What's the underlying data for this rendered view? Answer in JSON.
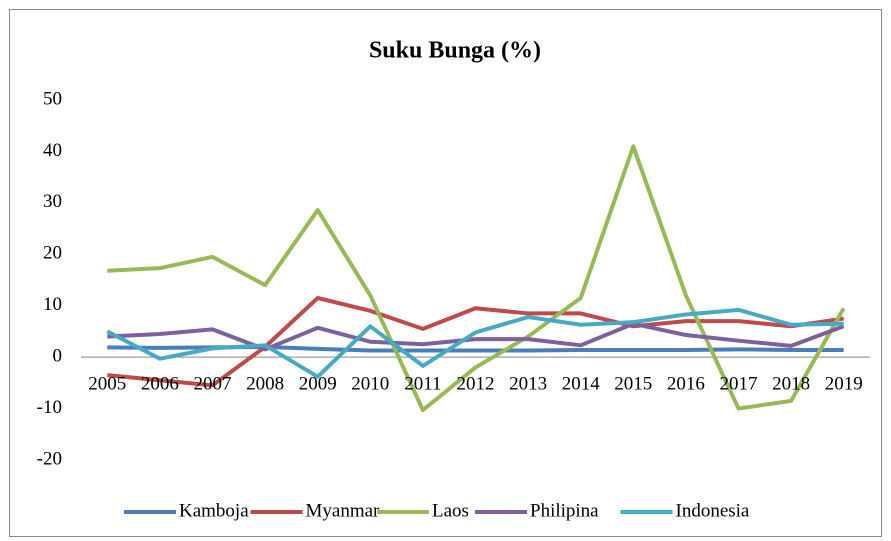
{
  "chart_data": {
    "type": "line",
    "title": "Suku Bunga (%)",
    "categories": [
      "2005",
      "2006",
      "2007",
      "2008",
      "2009",
      "2010",
      "2011",
      "2012",
      "2013",
      "2014",
      "2015",
      "2016",
      "2017",
      "2018",
      "2019"
    ],
    "series": [
      {
        "name": "Kamboja",
        "color": "#4a7ebb",
        "values": [
          1.9,
          1.8,
          1.9,
          2.0,
          1.6,
          1.3,
          1.3,
          1.3,
          1.3,
          1.4,
          1.4,
          1.4,
          1.5,
          1.4,
          1.4
        ]
      },
      {
        "name": "Myanmar",
        "color": "#be4b48",
        "values": [
          -3.5,
          -4.5,
          -5.5,
          2,
          11.5,
          9,
          5.5,
          9.5,
          8.5,
          8.5,
          6,
          7,
          7,
          6,
          7.5
        ]
      },
      {
        "name": "Laos",
        "color": "#98b954",
        "values": [
          16.8,
          17.3,
          19.5,
          14,
          28.6,
          12,
          -10.3,
          -2,
          4,
          11.5,
          41,
          12,
          -10,
          -8.5,
          9.5
        ]
      },
      {
        "name": "Philipina",
        "color": "#7d60a0",
        "values": [
          4,
          4.5,
          5.4,
          1.5,
          5.7,
          3,
          2.5,
          3.5,
          3.5,
          2.3,
          6.5,
          4.3,
          3.2,
          2.2,
          6
        ]
      },
      {
        "name": "Indonesia",
        "color": "#46aac5",
        "values": [
          5,
          -0.3,
          1.7,
          2.3,
          -3.8,
          6,
          -1.7,
          4.8,
          7.8,
          6.3,
          6.8,
          8.3,
          9.2,
          6.3,
          6.5
        ]
      }
    ],
    "ylim": [
      -20,
      50
    ],
    "yticks": [
      -20,
      -10,
      0,
      10,
      20,
      30,
      40,
      50
    ],
    "legend": "bottom"
  }
}
